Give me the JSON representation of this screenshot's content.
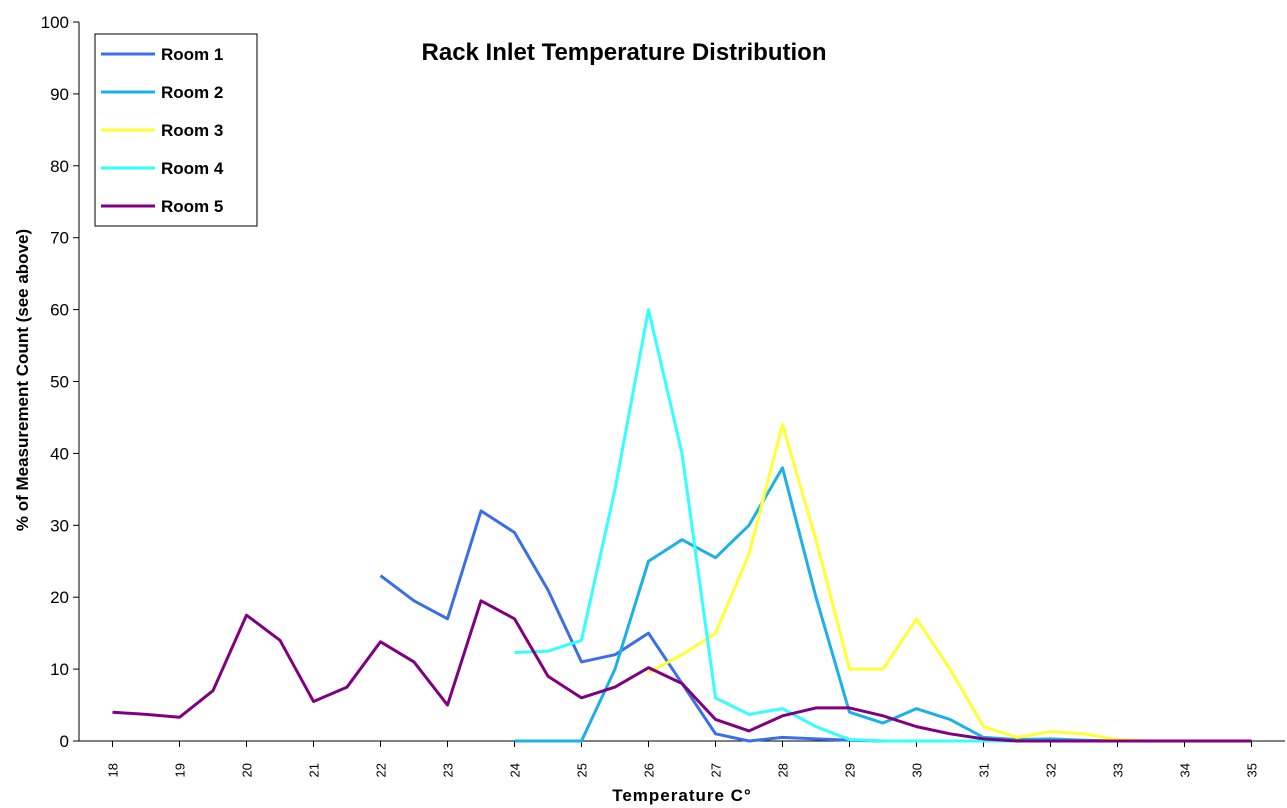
{
  "chart_data": {
    "type": "line",
    "title": "Rack Inlet Temperature Distribution",
    "x_label": "Temperature C°",
    "y_label": "% of Measurement Count (see above)",
    "x": [
      18,
      18.5,
      19,
      19.5,
      20,
      20.5,
      21,
      21.5,
      22,
      22.5,
      23,
      23.5,
      24,
      24.5,
      25,
      25.5,
      26,
      26.5,
      27,
      27.5,
      28,
      28.5,
      29,
      29.5,
      30,
      30.5,
      31,
      31.5,
      32,
      32.5,
      33,
      33.5,
      34,
      34.5,
      35
    ],
    "xlim": [
      17.5,
      35.5
    ],
    "xticks": [
      18,
      19,
      20,
      21,
      22,
      23,
      24,
      25,
      26,
      27,
      28,
      29,
      30,
      31,
      32,
      33,
      34,
      35
    ],
    "ylim": [
      0,
      100
    ],
    "yticks": [
      0,
      10,
      20,
      30,
      40,
      50,
      60,
      70,
      80,
      90,
      100
    ],
    "legend": "top-left",
    "series": [
      {
        "name": "Room 1",
        "color": "#3a6fe8",
        "values": [
          null,
          null,
          null,
          null,
          null,
          null,
          null,
          null,
          23,
          19.5,
          17,
          32,
          29,
          21,
          11,
          12,
          15,
          8,
          1,
          0,
          0.5,
          0.3,
          0.1,
          0,
          0,
          0,
          0,
          0,
          0,
          0,
          0,
          0,
          0,
          0,
          0
        ]
      },
      {
        "name": "Room 2",
        "color": "#1cb0e8",
        "values": [
          null,
          null,
          null,
          null,
          null,
          null,
          null,
          null,
          null,
          null,
          null,
          null,
          0,
          0,
          0,
          10,
          25,
          28,
          25.5,
          30,
          38,
          20,
          4,
          2.5,
          4.5,
          3,
          0.5,
          0.2,
          0.3,
          0.1,
          0,
          0,
          0,
          0,
          0
        ]
      },
      {
        "name": "Room 3",
        "color": "#ffff33",
        "values": [
          null,
          null,
          null,
          null,
          null,
          null,
          null,
          null,
          null,
          null,
          null,
          null,
          null,
          null,
          null,
          null,
          9.5,
          12,
          15,
          26,
          44,
          28,
          10,
          10,
          17,
          10,
          2,
          0.5,
          1.3,
          1,
          0.2,
          0,
          0,
          0,
          0
        ]
      },
      {
        "name": "Room 4",
        "color": "#33ffff",
        "values": [
          null,
          null,
          null,
          null,
          null,
          null,
          null,
          null,
          null,
          null,
          null,
          null,
          12.3,
          12.5,
          14,
          35,
          60,
          40,
          6,
          3.7,
          4.5,
          2,
          0.2,
          0,
          0,
          0,
          0,
          0,
          0,
          0,
          0,
          0,
          0,
          0,
          0
        ]
      },
      {
        "name": "Room 5",
        "color": "#800080",
        "values": [
          4,
          3.7,
          3.3,
          7,
          17.5,
          14,
          5.5,
          7.5,
          13.8,
          11,
          5,
          19.5,
          17,
          9,
          6,
          7.5,
          10.2,
          8,
          3,
          1.4,
          3.5,
          4.6,
          4.6,
          3.5,
          2,
          1,
          0.3,
          0,
          0,
          0,
          0,
          0,
          0,
          0,
          0
        ]
      }
    ]
  }
}
